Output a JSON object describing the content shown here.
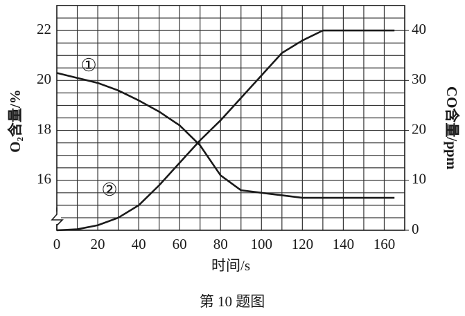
{
  "chart_data": {
    "type": "line",
    "ylabel": "O₂含量/%",
    "y2label": "CO含量/ppm",
    "xlabel": "时间/s",
    "caption": "第 10 题图",
    "x": [
      0,
      10,
      20,
      30,
      40,
      50,
      60,
      70,
      80,
      90,
      100,
      110,
      120,
      130,
      140,
      150,
      160,
      165
    ],
    "series": [
      {
        "name": "①",
        "color": "#1a1a1a",
        "values": [
          20.3,
          20.1,
          19.9,
          19.6,
          19.2,
          18.75,
          18.2,
          17.4,
          16.2,
          15.6,
          15.5,
          15.4,
          15.3,
          15.3,
          15.3,
          15.3,
          15.3,
          15.3
        ]
      },
      {
        "name": "②",
        "color": "#1a1a1a",
        "axis": "y2",
        "values": [
          0,
          0.2,
          1,
          2.5,
          5,
          9,
          13.5,
          18,
          22,
          26.5,
          31,
          35.5,
          38,
          40,
          40,
          40,
          40,
          40
        ]
      }
    ],
    "xlim": [
      0,
      170
    ],
    "xticks": [
      0,
      20,
      40,
      60,
      80,
      100,
      120,
      140,
      160
    ],
    "ylim": [
      14,
      23
    ],
    "yticks": [
      16,
      18,
      20,
      22
    ],
    "y2lim": [
      0,
      45
    ],
    "y2ticks": [
      0,
      10,
      20,
      30,
      40
    ],
    "grid": true
  }
}
